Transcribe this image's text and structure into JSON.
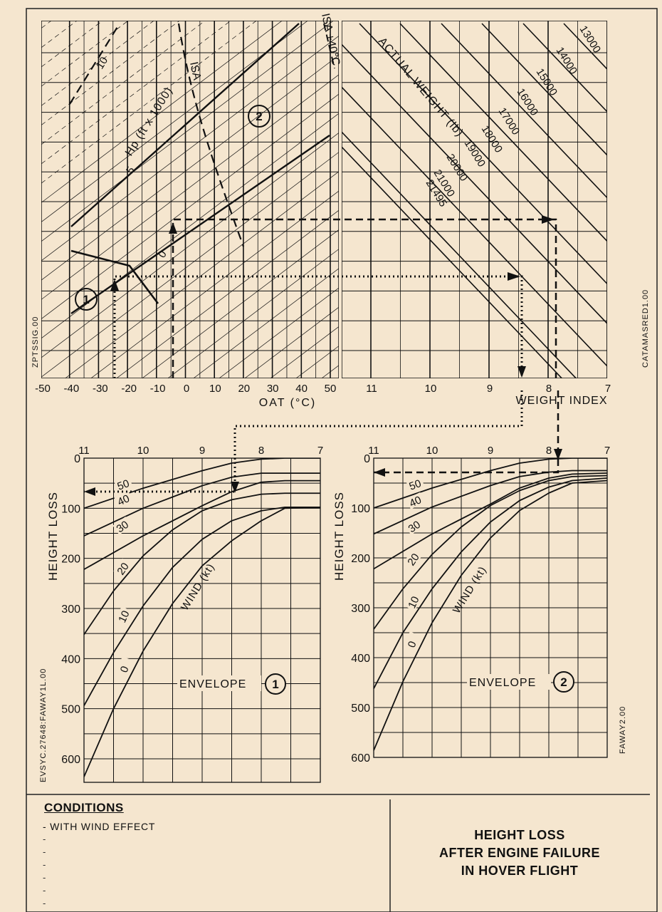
{
  "chart_data": [
    {
      "type": "line",
      "name": "oat-pressure-altitude-panel",
      "xlabel": "OAT (°C)",
      "xlim": [
        -50,
        50
      ],
      "x_ticks": [
        "-50",
        "-40",
        "-30",
        "-20",
        "-10",
        "0",
        "10",
        "20",
        "30",
        "40",
        "50"
      ],
      "series_label": "Hp (ft x 1000)",
      "series": [
        {
          "name": "10",
          "style": "dashed"
        },
        {
          "name": "5"
        },
        {
          "name": "0"
        }
      ],
      "isa_label": "ISA",
      "isa40_label": "ISA +40°C",
      "envelope_markers": [
        "1",
        "2"
      ],
      "side_label": "ZPTSSIG.00"
    },
    {
      "type": "line",
      "name": "weight-panel",
      "xlabel": "WEIGHT INDEX",
      "xlim": [
        11,
        7
      ],
      "x_ticks": [
        "11",
        "10",
        "9",
        "8",
        "7"
      ],
      "series_label": "ACTUAL WEIGHT (lb)",
      "series": [
        {
          "name": "13000"
        },
        {
          "name": "14000"
        },
        {
          "name": "15000"
        },
        {
          "name": "16000"
        },
        {
          "name": "17000"
        },
        {
          "name": "18000"
        },
        {
          "name": "19000"
        },
        {
          "name": "20000"
        },
        {
          "name": "21000"
        },
        {
          "name": "21495"
        }
      ],
      "side_label": "CATAMASRED1.00"
    },
    {
      "type": "line",
      "name": "envelope-1",
      "title": "ENVELOPE",
      "marker": "1",
      "ylabel": "HEIGHT LOSS",
      "xlim": [
        11,
        7
      ],
      "ylim": [
        0,
        650
      ],
      "x_ticks": [
        "11",
        "10",
        "9",
        "8",
        "7"
      ],
      "y_ticks": [
        "0",
        "100",
        "200",
        "300",
        "400",
        "500",
        "600"
      ],
      "series_label": "WIND (kt)",
      "series": [
        {
          "name": "50",
          "x": [
            11,
            10,
            9,
            8.5,
            8,
            7.6,
            7
          ],
          "y": [
            100,
            60,
            25,
            10,
            2,
            0,
            0
          ]
        },
        {
          "name": "40",
          "x": [
            11,
            10,
            9,
            8.5,
            8,
            7.6,
            7
          ],
          "y": [
            155,
            100,
            55,
            38,
            30,
            30,
            30
          ]
        },
        {
          "name": "30",
          "x": [
            11,
            10,
            9,
            8.5,
            8,
            7.6,
            7
          ],
          "y": [
            222,
            155,
            95,
            67,
            48,
            45,
            45
          ]
        },
        {
          "name": "20",
          "x": [
            11,
            10.5,
            10,
            9.5,
            9,
            8.5,
            8,
            7.6,
            7
          ],
          "y": [
            352,
            265,
            195,
            143,
            105,
            83,
            72,
            70,
            70
          ]
        },
        {
          "name": "10",
          "x": [
            11,
            10.5,
            10,
            9.5,
            9,
            8.5,
            8,
            7.6,
            7
          ],
          "y": [
            494,
            388,
            295,
            218,
            162,
            125,
            105,
            98,
            98
          ]
        },
        {
          "name": "0",
          "x": [
            11,
            10.5,
            10,
            9.5,
            9,
            8.5,
            8,
            7.6,
            7
          ],
          "y": [
            636,
            500,
            385,
            290,
            215,
            165,
            125,
            100,
            98
          ]
        }
      ],
      "side_label": "EVSYC.27648:FAWAY1L.00"
    },
    {
      "type": "line",
      "name": "envelope-2",
      "title": "ENVELOPE",
      "marker": "2",
      "ylabel": "HEIGHT LOSS",
      "xlim": [
        11,
        7
      ],
      "ylim": [
        0,
        650
      ],
      "x_ticks": [
        "11",
        "10",
        "9",
        "8",
        "7"
      ],
      "y_ticks": [
        "0",
        "100",
        "200",
        "300",
        "400",
        "500",
        "600"
      ],
      "series_label": "WIND (kt)",
      "series": [
        {
          "name": "50",
          "x": [
            11,
            10,
            9,
            8.5,
            8,
            7.6,
            7
          ],
          "y": [
            100,
            60,
            25,
            10,
            2,
            0,
            0
          ]
        },
        {
          "name": "40",
          "x": [
            11,
            10,
            9,
            8.5,
            8,
            7.6,
            7
          ],
          "y": [
            152,
            98,
            55,
            37,
            28,
            25,
            25
          ]
        },
        {
          "name": "30",
          "x": [
            11,
            10,
            9,
            8.5,
            8,
            7.6,
            7
          ],
          "y": [
            222,
            152,
            92,
            60,
            40,
            32,
            30
          ]
        },
        {
          "name": "20",
          "x": [
            11,
            10.5,
            10,
            9.5,
            9,
            8.5,
            8,
            7.6,
            7
          ],
          "y": [
            343,
            262,
            193,
            138,
            95,
            65,
            45,
            37,
            35
          ]
        },
        {
          "name": "10",
          "x": [
            11,
            10.5,
            10,
            9.5,
            9,
            8.5,
            8,
            7.6,
            7
          ],
          "y": [
            462,
            350,
            262,
            188,
            128,
            85,
            58,
            45,
            40
          ]
        },
        {
          "name": "0",
          "x": [
            11,
            10.5,
            10,
            9.5,
            9,
            8.5,
            8,
            7.6,
            7
          ],
          "y": [
            586,
            448,
            330,
            235,
            160,
            105,
            70,
            50,
            45
          ]
        }
      ],
      "side_label": "FAWAY2.00"
    }
  ],
  "conditions": {
    "title": "CONDITIONS",
    "items": [
      "WITH WIND EFFECT"
    ]
  },
  "footer_title": {
    "line1": "HEIGHT LOSS",
    "line2": "AFTER ENGINE FAILURE",
    "line3": "IN HOVER FLIGHT"
  },
  "colors": {
    "background": "#f5e6cf",
    "ink": "#111111"
  }
}
